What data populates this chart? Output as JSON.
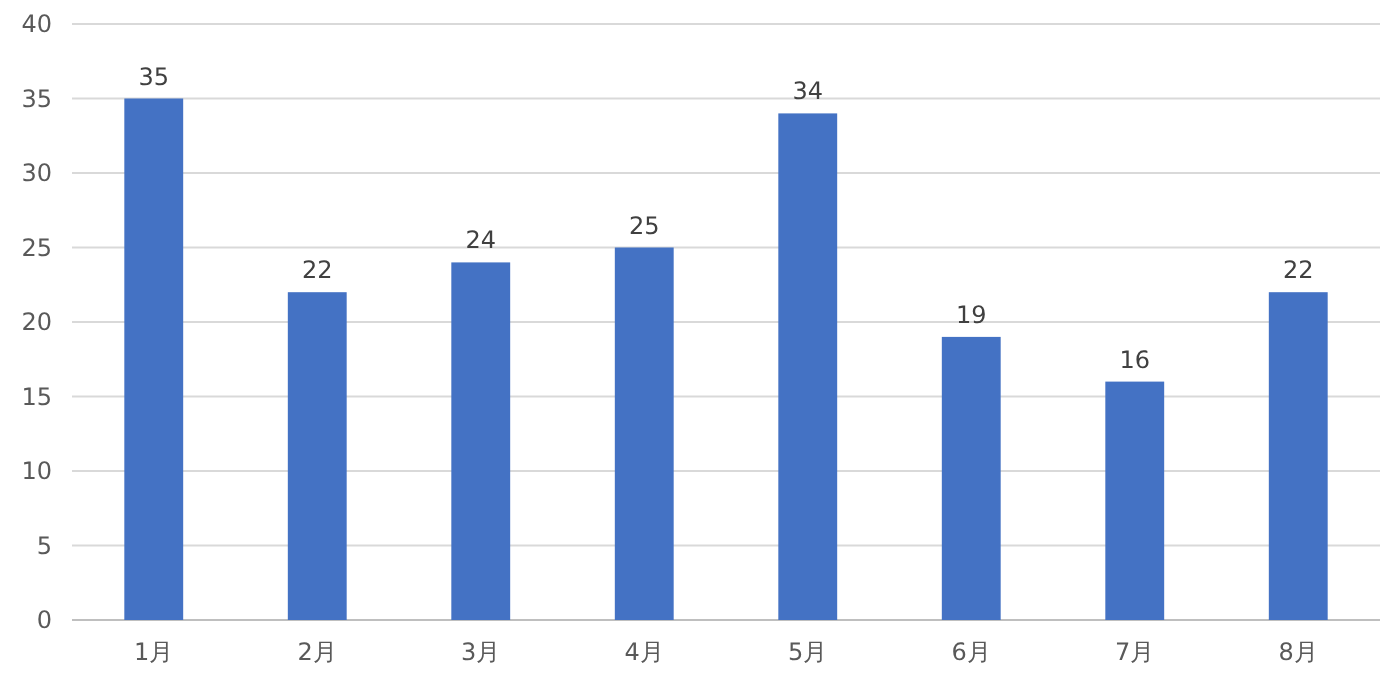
{
  "chart_data": {
    "type": "bar",
    "categories": [
      "1月",
      "2月",
      "3月",
      "4月",
      "5月",
      "6月",
      "7月",
      "8月"
    ],
    "values": [
      35,
      22,
      24,
      25,
      34,
      19,
      16,
      22
    ],
    "color": "#4472c4",
    "ylim": [
      0,
      40
    ],
    "yticks": [
      0,
      5,
      10,
      15,
      20,
      25,
      30,
      35,
      40
    ],
    "grid": "y",
    "data_labels": true
  }
}
